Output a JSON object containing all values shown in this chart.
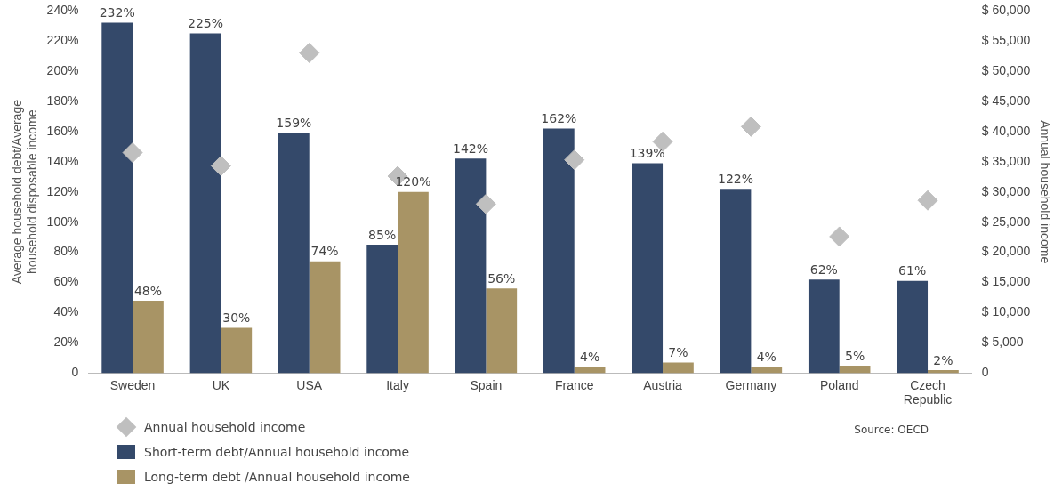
{
  "chart_data": {
    "type": "bar",
    "categories": [
      "Sweden",
      "UK",
      "USA",
      "Italy",
      "Spain",
      "France",
      "Austria",
      "Germany",
      "Poland",
      "Czech Republic"
    ],
    "ylabel": "Average household debt/Average household disposable income",
    "y2label": "Annual household income",
    "ylim": [
      0,
      240
    ],
    "yticks": [
      {
        "value": 0,
        "label": "0"
      },
      {
        "value": 20,
        "label": "20%"
      },
      {
        "value": 40,
        "label": "40%"
      },
      {
        "value": 60,
        "label": "60%"
      },
      {
        "value": 80,
        "label": "80%"
      },
      {
        "value": 100,
        "label": "100%"
      },
      {
        "value": 120,
        "label": "120%"
      },
      {
        "value": 140,
        "label": "140%"
      },
      {
        "value": 160,
        "label": "160%"
      },
      {
        "value": 180,
        "label": "180%"
      },
      {
        "value": 200,
        "label": "200%"
      },
      {
        "value": 220,
        "label": "220%"
      },
      {
        "value": 240,
        "label": "240%"
      }
    ],
    "y2lim": [
      0,
      60000
    ],
    "y2ticks": [
      {
        "value": 0,
        "label": "0"
      },
      {
        "value": 5000,
        "label": "$ 5,000"
      },
      {
        "value": 10000,
        "label": "$ 10,000"
      },
      {
        "value": 15000,
        "label": "$ 15,000"
      },
      {
        "value": 20000,
        "label": "$ 20,000"
      },
      {
        "value": 25000,
        "label": "$ 25,000"
      },
      {
        "value": 30000,
        "label": "$ 30,000"
      },
      {
        "value": 35000,
        "label": "$ 35,000"
      },
      {
        "value": 40000,
        "label": "$ 40,000"
      },
      {
        "value": 45000,
        "label": "$ 45,000"
      },
      {
        "value": 50000,
        "label": "$ 50,000"
      },
      {
        "value": 55000,
        "label": "$ 55,000"
      },
      {
        "value": 60000,
        "label": "$ 60,000"
      }
    ],
    "series": [
      {
        "name": "Annual household income",
        "type": "scatter",
        "axis": "y2",
        "marker": "diamond",
        "color": "#bfbfbf",
        "x": [
          "Sweden",
          "UK",
          "USA",
          "Italy",
          "Spain",
          "France",
          "Austria",
          "Germany",
          "Poland",
          "Czech Republic"
        ],
        "values": [
          36500,
          34300,
          53000,
          32600,
          28000,
          35300,
          38300,
          40800,
          22600,
          28600
        ]
      },
      {
        "name": "Short-term debt/Annual household income",
        "color": "#34496a",
        "values": [
          232,
          225,
          159,
          85,
          142,
          162,
          139,
          122,
          62,
          61
        ],
        "value_labels": [
          "232%",
          "225%",
          "159%",
          "85%",
          "142%",
          "162%",
          "139%",
          "122%",
          "62%",
          "61%"
        ]
      },
      {
        "name": "Long-term debt /Annual household income",
        "color": "#a89465",
        "values": [
          48,
          30,
          74,
          120,
          56,
          4,
          7,
          4,
          5,
          2
        ],
        "value_labels": [
          "48%",
          "30%",
          "74%",
          "120%",
          "56%",
          "4%",
          "7%",
          "4%",
          "5%",
          "2%"
        ]
      }
    ],
    "legend": "bottom left",
    "grid": false,
    "annotations": [
      "Source: OECD"
    ]
  }
}
